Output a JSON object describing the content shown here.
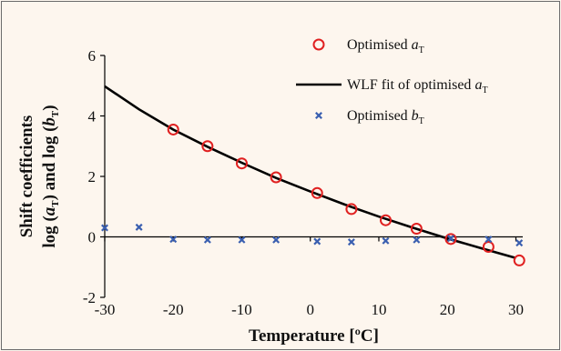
{
  "chart_data": {
    "type": "scatter",
    "xlabel": "Temperature [ºC]",
    "ylabel_line1": "Shift coefficients",
    "ylabel_line2": {
      "pre": "log (",
      "a": "a",
      "sub1": "T",
      "mid": ") and log (",
      "b": "b",
      "sub2": "T",
      "post": ")"
    },
    "xlim": [
      -30,
      31
    ],
    "ylim": [
      -2,
      6
    ],
    "xticks": [
      -30,
      -20,
      -10,
      0,
      10,
      20,
      30
    ],
    "yticks": [
      -2,
      0,
      2,
      4,
      6
    ],
    "grid": false,
    "legend_position": "top-right",
    "series": [
      {
        "name": "Optimised aT",
        "legend": {
          "text": "Optimised ",
          "var": "a",
          "sub": "T"
        },
        "marker": "circle",
        "color": "#e02020",
        "x": [
          -20,
          -15,
          -10,
          -5,
          1,
          6,
          11,
          15.5,
          20.5,
          26,
          30.5
        ],
        "y": [
          3.55,
          3.0,
          2.43,
          1.97,
          1.45,
          0.92,
          0.55,
          0.27,
          -0.07,
          -0.33,
          -0.78
        ]
      },
      {
        "name": "WLF fit of optimised aT",
        "legend": {
          "text": "WLF fit of optimised ",
          "var": "a",
          "sub": "T"
        },
        "marker": "line",
        "color": "#000000",
        "x": [
          -30,
          -25,
          -20,
          -15,
          -10,
          -5,
          0,
          5,
          10,
          15,
          20,
          25,
          30
        ],
        "y": [
          4.98,
          4.22,
          3.55,
          2.98,
          2.45,
          1.95,
          1.5,
          1.07,
          0.67,
          0.3,
          -0.05,
          -0.38,
          -0.7
        ]
      },
      {
        "name": "Optimised bT",
        "legend": {
          "text": "Optimised ",
          "var": "b",
          "sub": "T"
        },
        "marker": "x",
        "color": "#3a5fb0",
        "x": [
          -30,
          -25,
          -20,
          -15,
          -10,
          -5,
          1,
          6,
          11,
          15.5,
          20.5,
          26,
          30.5
        ],
        "y": [
          0.3,
          0.32,
          -0.08,
          -0.1,
          -0.1,
          -0.1,
          -0.15,
          -0.17,
          -0.13,
          -0.1,
          -0.05,
          -0.08,
          -0.2
        ]
      }
    ]
  }
}
